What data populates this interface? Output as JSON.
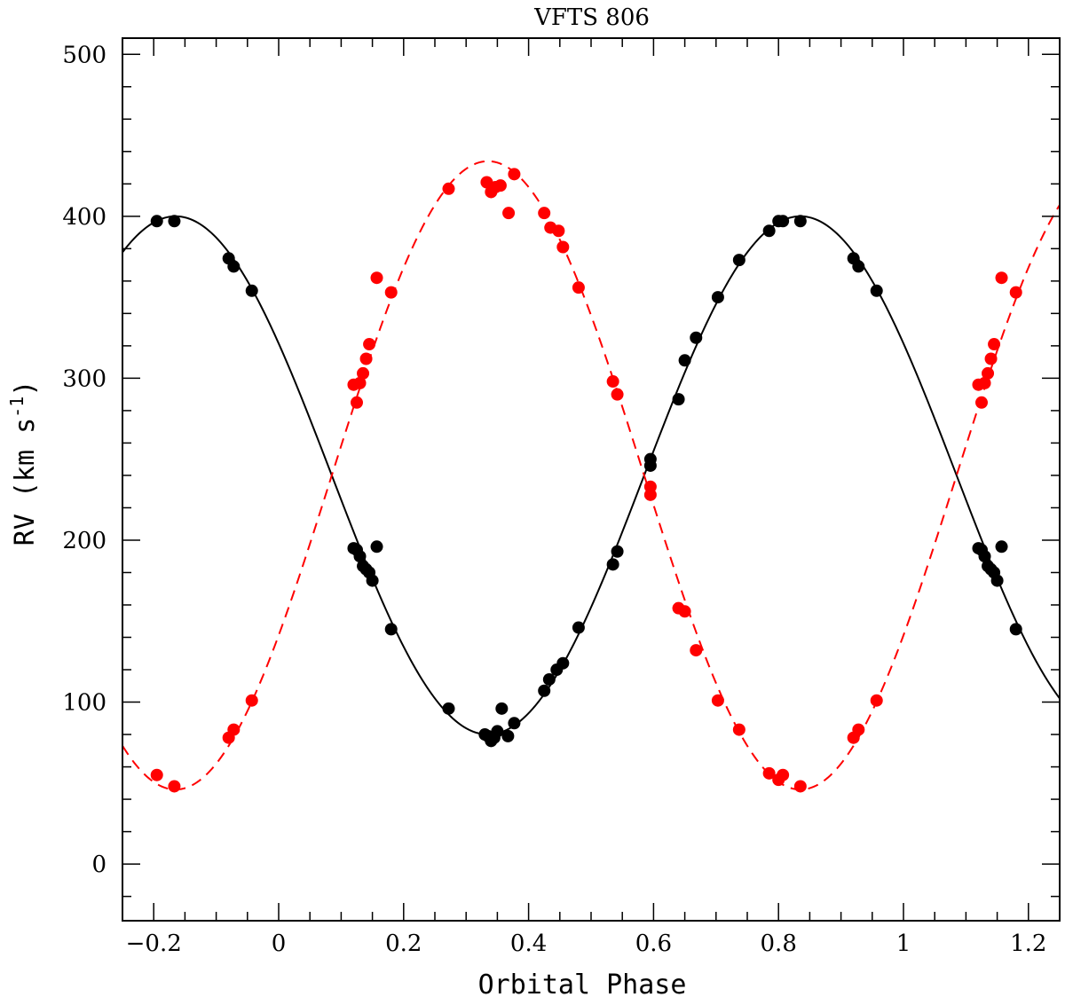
{
  "chart_data": {
    "type": "scatter",
    "title": "VFTS 806",
    "xlabel": "Orbital Phase",
    "ylabel": "RV (km s",
    "ylabel_sup": "-1",
    "ylabel_close": ")",
    "xlim": [
      -0.25,
      1.25
    ],
    "ylim": [
      -35,
      510
    ],
    "x_ticks": [
      -0.2,
      0,
      0.2,
      0.4,
      0.6,
      0.8,
      1,
      1.2
    ],
    "x_tick_labels": [
      "−0.2",
      "0",
      "0.2",
      "0.4",
      "0.6",
      "0.8",
      "1",
      "1.2"
    ],
    "y_ticks": [
      0,
      100,
      200,
      300,
      400,
      500
    ],
    "y_tick_labels": [
      "0",
      "100",
      "200",
      "300",
      "400",
      "500"
    ],
    "series": [
      {
        "color": "#000000",
        "marker": "filled-circle",
        "fit": {
          "style": "solid",
          "gamma": 240,
          "K": 160,
          "phase_of_max": 0.835
        },
        "points": [
          [
            -0.195,
            397
          ],
          [
            -0.167,
            397
          ],
          [
            -0.08,
            374
          ],
          [
            -0.072,
            369
          ],
          [
            -0.043,
            354
          ],
          [
            0.12,
            195
          ],
          [
            0.125,
            194
          ],
          [
            0.13,
            190
          ],
          [
            0.135,
            184
          ],
          [
            0.14,
            182
          ],
          [
            0.145,
            180
          ],
          [
            0.15,
            175
          ],
          [
            0.157,
            196
          ],
          [
            0.18,
            145
          ],
          [
            0.272,
            96
          ],
          [
            0.33,
            80
          ],
          [
            0.335,
            79
          ],
          [
            0.34,
            76
          ],
          [
            0.345,
            78
          ],
          [
            0.35,
            82
          ],
          [
            0.357,
            96
          ],
          [
            0.367,
            79
          ],
          [
            0.377,
            87
          ],
          [
            0.425,
            107
          ],
          [
            0.433,
            114
          ],
          [
            0.445,
            120
          ],
          [
            0.455,
            124
          ],
          [
            0.48,
            146
          ],
          [
            0.535,
            185
          ],
          [
            0.542,
            193
          ],
          [
            0.595,
            246
          ],
          [
            0.595,
            250
          ],
          [
            0.64,
            287
          ],
          [
            0.65,
            311
          ],
          [
            0.668,
            325
          ],
          [
            0.703,
            350
          ],
          [
            0.737,
            373
          ],
          [
            0.785,
            391
          ],
          [
            0.8,
            397
          ],
          [
            0.807,
            397
          ],
          [
            0.835,
            397
          ],
          [
            0.92,
            374
          ],
          [
            0.928,
            369
          ],
          [
            0.957,
            354
          ],
          [
            1.12,
            195
          ],
          [
            1.125,
            194
          ],
          [
            1.13,
            190
          ],
          [
            1.135,
            184
          ],
          [
            1.14,
            182
          ],
          [
            1.145,
            180
          ],
          [
            1.15,
            175
          ],
          [
            1.157,
            196
          ],
          [
            1.18,
            145
          ]
        ]
      },
      {
        "color": "#ff0000",
        "marker": "filled-circle",
        "fit": {
          "style": "dashed",
          "gamma": 240,
          "K": 194,
          "phase_of_max": 0.335
        },
        "points": [
          [
            -0.195,
            55
          ],
          [
            -0.167,
            48
          ],
          [
            -0.08,
            78
          ],
          [
            -0.072,
            83
          ],
          [
            -0.043,
            101
          ],
          [
            0.12,
            296
          ],
          [
            0.125,
            285
          ],
          [
            0.13,
            297
          ],
          [
            0.135,
            303
          ],
          [
            0.14,
            312
          ],
          [
            0.145,
            321
          ],
          [
            0.157,
            362
          ],
          [
            0.18,
            353
          ],
          [
            0.272,
            417
          ],
          [
            0.333,
            421
          ],
          [
            0.34,
            415
          ],
          [
            0.347,
            418
          ],
          [
            0.355,
            419
          ],
          [
            0.368,
            402
          ],
          [
            0.377,
            426
          ],
          [
            0.425,
            402
          ],
          [
            0.435,
            393
          ],
          [
            0.448,
            391
          ],
          [
            0.455,
            381
          ],
          [
            0.48,
            356
          ],
          [
            0.535,
            298
          ],
          [
            0.542,
            290
          ],
          [
            0.595,
            233
          ],
          [
            0.595,
            228
          ],
          [
            0.64,
            158
          ],
          [
            0.65,
            156
          ],
          [
            0.668,
            132
          ],
          [
            0.703,
            101
          ],
          [
            0.737,
            83
          ],
          [
            0.785,
            56
          ],
          [
            0.8,
            52
          ],
          [
            0.807,
            55
          ],
          [
            0.835,
            48
          ],
          [
            0.92,
            78
          ],
          [
            0.928,
            83
          ],
          [
            0.957,
            101
          ],
          [
            1.12,
            296
          ],
          [
            1.125,
            285
          ],
          [
            1.13,
            297
          ],
          [
            1.135,
            303
          ],
          [
            1.14,
            312
          ],
          [
            1.145,
            321
          ],
          [
            1.157,
            362
          ],
          [
            1.18,
            353
          ]
        ]
      }
    ],
    "grid": false,
    "legend": "none"
  }
}
